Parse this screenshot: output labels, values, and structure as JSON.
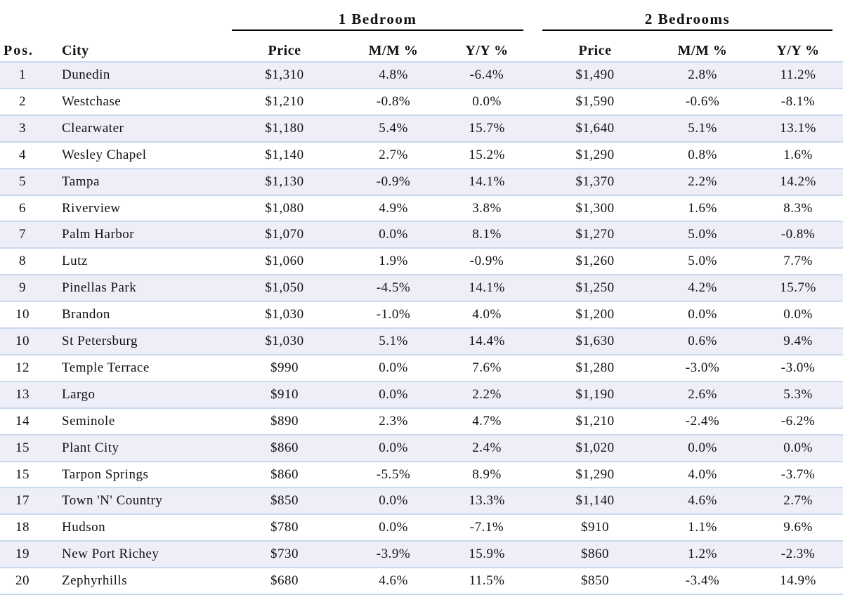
{
  "header": {
    "group1": "1 Bedroom",
    "group2": "2 Bedrooms",
    "columns": [
      "Pos.",
      "City",
      "Price",
      "M/M %",
      "Y/Y %",
      "Price",
      "M/M %",
      "Y/Y %"
    ]
  },
  "table": {
    "rows": [
      [
        "1",
        "Dunedin",
        "$1,310",
        "4.8%",
        "-6.4%",
        "$1,490",
        "2.8%",
        "11.2%"
      ],
      [
        "2",
        "Westchase",
        "$1,210",
        "-0.8%",
        "0.0%",
        "$1,590",
        "-0.6%",
        "-8.1%"
      ],
      [
        "3",
        "Clearwater",
        "$1,180",
        "5.4%",
        "15.7%",
        "$1,640",
        "5.1%",
        "13.1%"
      ],
      [
        "4",
        "Wesley Chapel",
        "$1,140",
        "2.7%",
        "15.2%",
        "$1,290",
        "0.8%",
        "1.6%"
      ],
      [
        "5",
        "Tampa",
        "$1,130",
        "-0.9%",
        "14.1%",
        "$1,370",
        "2.2%",
        "14.2%"
      ],
      [
        "6",
        "Riverview",
        "$1,080",
        "4.9%",
        "3.8%",
        "$1,300",
        "1.6%",
        "8.3%"
      ],
      [
        "7",
        "Palm Harbor",
        "$1,070",
        "0.0%",
        "8.1%",
        "$1,270",
        "5.0%",
        "-0.8%"
      ],
      [
        "8",
        "Lutz",
        "$1,060",
        "1.9%",
        "-0.9%",
        "$1,260",
        "5.0%",
        "7.7%"
      ],
      [
        "9",
        "Pinellas Park",
        "$1,050",
        "-4.5%",
        "14.1%",
        "$1,250",
        "4.2%",
        "15.7%"
      ],
      [
        "10",
        "Brandon",
        "$1,030",
        "-1.0%",
        "4.0%",
        "$1,200",
        "0.0%",
        "0.0%"
      ],
      [
        "10",
        "St Petersburg",
        "$1,030",
        "5.1%",
        "14.4%",
        "$1,630",
        "0.6%",
        "9.4%"
      ],
      [
        "12",
        "Temple Terrace",
        "$990",
        "0.0%",
        "7.6%",
        "$1,280",
        "-3.0%",
        "-3.0%"
      ],
      [
        "13",
        "Largo",
        "$910",
        "0.0%",
        "2.2%",
        "$1,190",
        "2.6%",
        "5.3%"
      ],
      [
        "14",
        "Seminole",
        "$890",
        "2.3%",
        "4.7%",
        "$1,210",
        "-2.4%",
        "-6.2%"
      ],
      [
        "15",
        "Plant City",
        "$860",
        "0.0%",
        "2.4%",
        "$1,020",
        "0.0%",
        "0.0%"
      ],
      [
        "15",
        "Tarpon Springs",
        "$860",
        "-5.5%",
        "8.9%",
        "$1,290",
        "4.0%",
        "-3.7%"
      ],
      [
        "17",
        "Town 'N' Country",
        "$850",
        "0.0%",
        "13.3%",
        "$1,140",
        "4.6%",
        "2.7%"
      ],
      [
        "18",
        "Hudson",
        "$780",
        "0.0%",
        "-7.1%",
        "$910",
        "1.1%",
        "9.6%"
      ],
      [
        "19",
        "New Port Richey",
        "$730",
        "-3.9%",
        "15.9%",
        "$860",
        "1.2%",
        "-2.3%"
      ],
      [
        "20",
        "Zephyrhills",
        "$680",
        "4.6%",
        "11.5%",
        "$850",
        "-3.4%",
        "14.9%"
      ]
    ]
  }
}
